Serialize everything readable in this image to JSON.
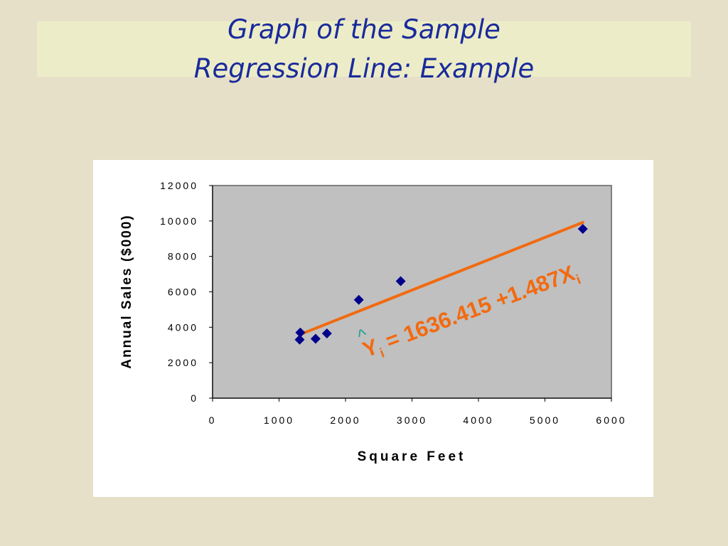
{
  "slide": {
    "title_line1": "Graph of the Sample",
    "title_line2": "Regression Line: Example"
  },
  "chart_data": {
    "type": "scatter",
    "title": "",
    "xlabel": "Square Feet",
    "ylabel": "Annual Sales ($000)",
    "xlim": [
      0,
      6000
    ],
    "ylim": [
      0,
      12000
    ],
    "x_ticks": [
      0,
      1000,
      2000,
      3000,
      4000,
      5000,
      6000
    ],
    "y_ticks": [
      0,
      2000,
      4000,
      6000,
      8000,
      10000,
      12000
    ],
    "grid": false,
    "series": [
      {
        "type": "scatter",
        "color": "#00008b",
        "marker": "diamond",
        "points": [
          {
            "x": 1310,
            "y": 3300
          },
          {
            "x": 1320,
            "y": 3700
          },
          {
            "x": 1550,
            "y": 3350
          },
          {
            "x": 1720,
            "y": 3650
          },
          {
            "x": 2200,
            "y": 5550
          },
          {
            "x": 2830,
            "y": 6600
          },
          {
            "x": 5570,
            "y": 9550
          }
        ]
      },
      {
        "type": "line",
        "color": "#f26a10",
        "points": [
          {
            "x": 1310,
            "y": 3584
          },
          {
            "x": 5570,
            "y": 9919
          }
        ]
      }
    ],
    "annotation": {
      "hat": "^",
      "y": "Y",
      "sub_i": "i",
      "equation": " = 1636.415 +1.487X",
      "sub_i2": "i",
      "color": "#f26a10",
      "hat_color": "#2aa198"
    },
    "plot_background": "#c0c0c0"
  }
}
